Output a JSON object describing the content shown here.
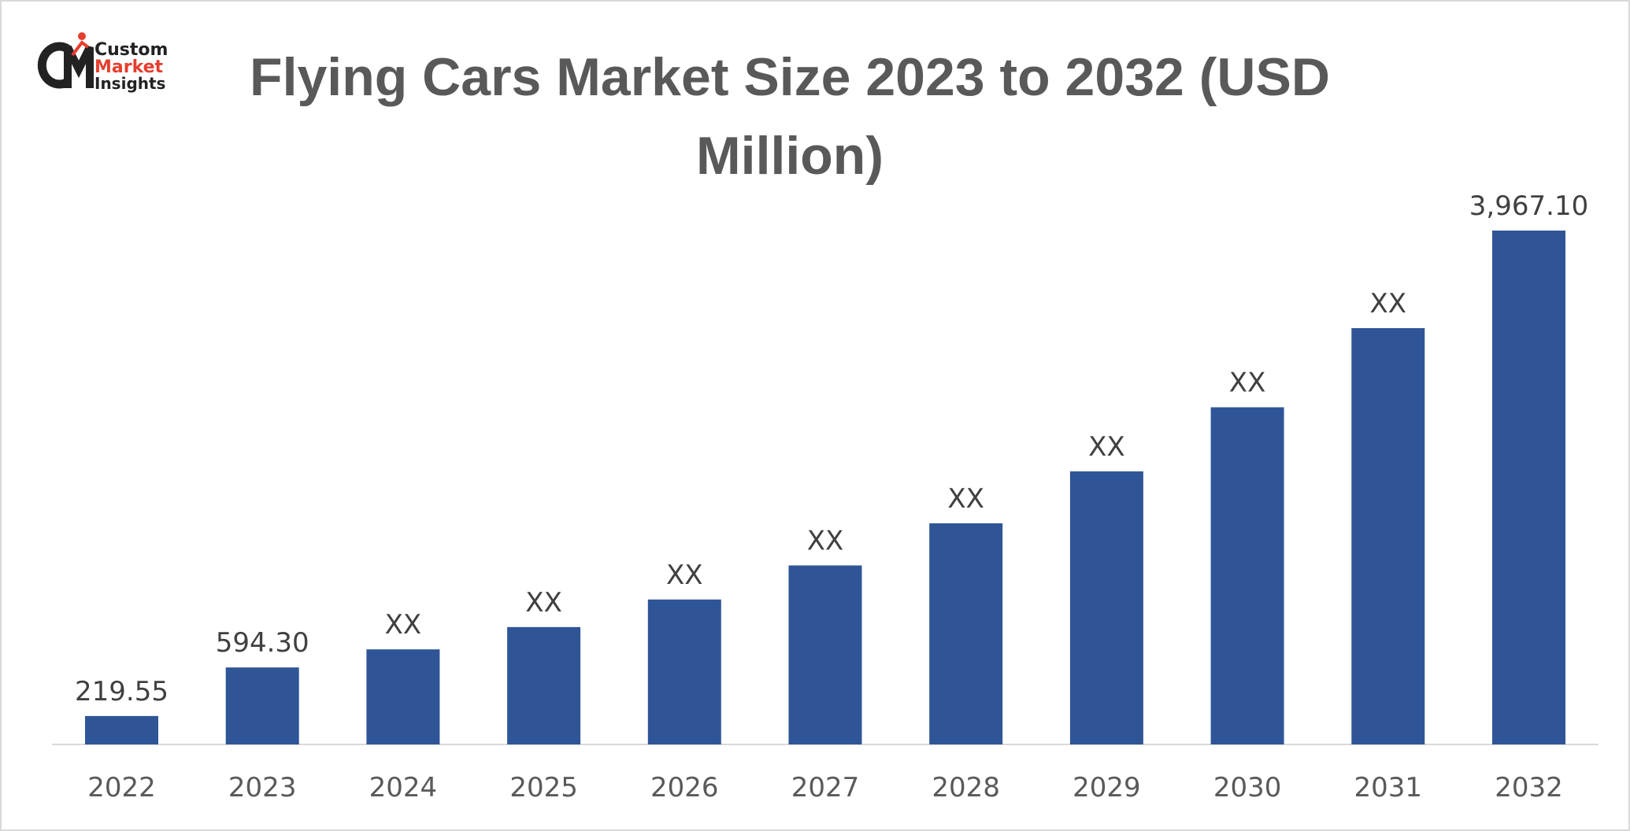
{
  "logo": {
    "line1": "Custom",
    "line2": "Market",
    "line3": "Insights"
  },
  "chart_data": {
    "type": "bar",
    "title": "Flying Cars Market Size 2023 to 2032 (USD Million)",
    "categories": [
      "2022",
      "2023",
      "2024",
      "2025",
      "2026",
      "2027",
      "2028",
      "2029",
      "2030",
      "2031",
      "2032"
    ],
    "values": [
      219.55,
      594.3,
      734,
      906,
      1119,
      1382,
      1707,
      2108,
      2603,
      3214,
      3967.1
    ],
    "value_labels": [
      "219.55",
      "594.30",
      "XX",
      "XX",
      "XX",
      "XX",
      "XX",
      "XX",
      "XX",
      "XX",
      "3,967.10"
    ],
    "color": "#2f5597"
  }
}
